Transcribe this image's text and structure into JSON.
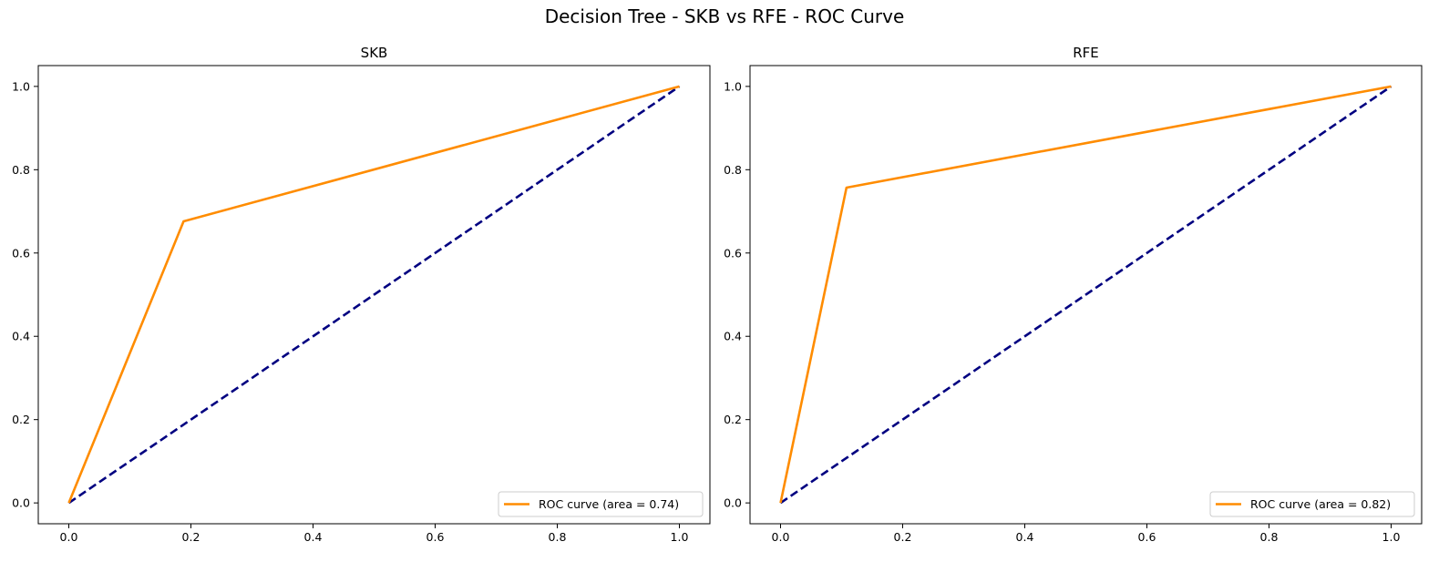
{
  "title": "Decision Tree - SKB vs RFE - ROC Curve",
  "chart_data": [
    {
      "type": "line",
      "title": "SKB",
      "xlabel": "",
      "ylabel": "",
      "xlim": [
        -0.05,
        1.05
      ],
      "ylim": [
        -0.05,
        1.05
      ],
      "xticks": [
        "0.0",
        "0.2",
        "0.4",
        "0.6",
        "0.8",
        "1.0"
      ],
      "yticks": [
        "0.0",
        "0.2",
        "0.4",
        "0.6",
        "0.8",
        "1.0"
      ],
      "grid": false,
      "legend_position": "lower-right",
      "series": [
        {
          "name": "ROC curve (area = 0.74)",
          "color": "#ff8c00",
          "style": "solid",
          "x": [
            0.0,
            0.188,
            1.0
          ],
          "y": [
            0.0,
            0.676,
            1.0
          ]
        },
        {
          "color": "#000080",
          "style": "dashed",
          "x": [
            0.0,
            1.0
          ],
          "y": [
            0.0,
            1.0
          ]
        }
      ]
    },
    {
      "type": "line",
      "title": "RFE",
      "xlabel": "",
      "ylabel": "",
      "xlim": [
        -0.05,
        1.05
      ],
      "ylim": [
        -0.05,
        1.05
      ],
      "xticks": [
        "0.0",
        "0.2",
        "0.4",
        "0.6",
        "0.8",
        "1.0"
      ],
      "yticks": [
        "0.0",
        "0.2",
        "0.4",
        "0.6",
        "0.8",
        "1.0"
      ],
      "grid": false,
      "legend_position": "lower-right",
      "series": [
        {
          "name": "ROC curve (area = 0.82)",
          "color": "#ff8c00",
          "style": "solid",
          "x": [
            0.0,
            0.108,
            1.0
          ],
          "y": [
            0.0,
            0.757,
            1.0
          ]
        },
        {
          "color": "#000080",
          "style": "dashed",
          "x": [
            0.0,
            1.0
          ],
          "y": [
            0.0,
            1.0
          ]
        }
      ]
    }
  ]
}
